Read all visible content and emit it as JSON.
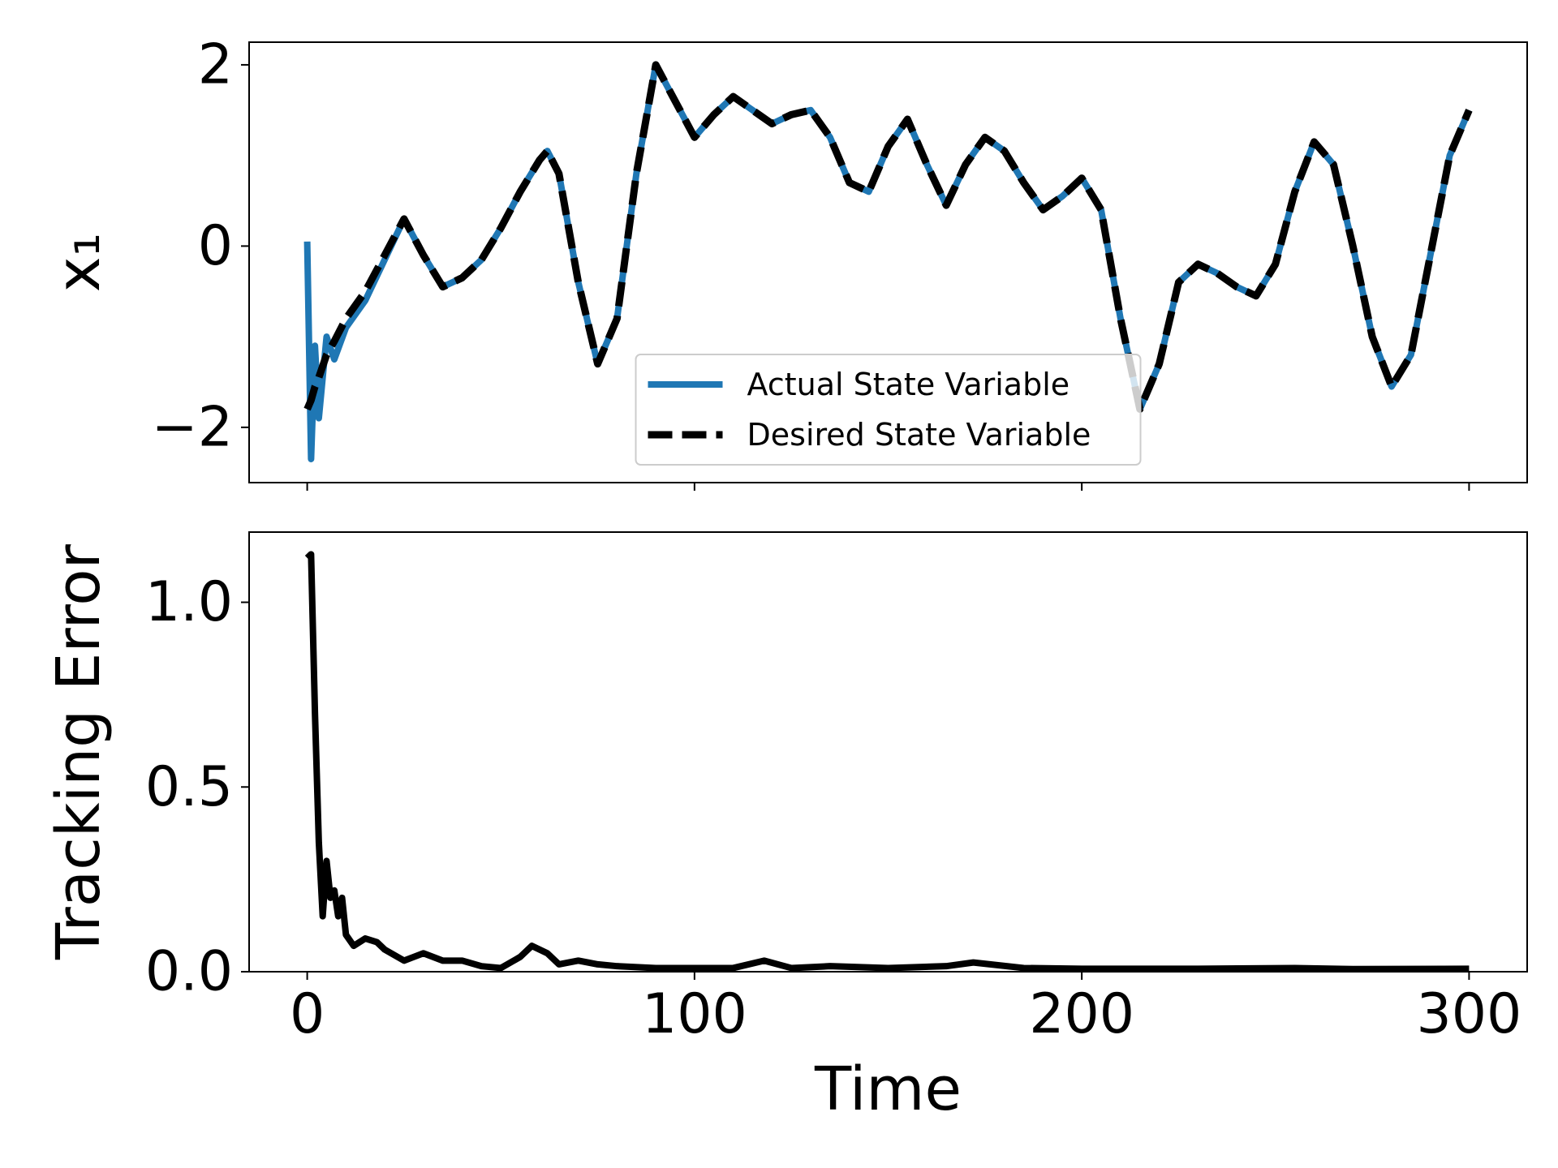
{
  "chart_data": [
    {
      "type": "line",
      "ylabel": "x₁",
      "x": [
        0,
        1,
        2,
        3,
        5,
        7,
        10,
        15,
        20,
        25,
        30,
        35,
        40,
        45,
        50,
        55,
        60,
        62,
        65,
        70,
        75,
        80,
        85,
        90,
        95,
        100,
        105,
        110,
        115,
        120,
        125,
        130,
        135,
        140,
        145,
        150,
        155,
        160,
        165,
        170,
        175,
        180,
        185,
        190,
        195,
        200,
        205,
        210,
        215,
        220,
        225,
        230,
        235,
        240,
        245,
        250,
        255,
        260,
        265,
        270,
        275,
        280,
        285,
        290,
        295,
        300
      ],
      "series": [
        {
          "name": "Actual State Variable",
          "color": "#1f77b4",
          "style": "solid",
          "values": [
            0.05,
            -2.35,
            -1.1,
            -1.9,
            -1.0,
            -1.25,
            -0.9,
            -0.6,
            -0.15,
            0.3,
            -0.1,
            -0.45,
            -0.35,
            -0.15,
            0.2,
            0.6,
            0.95,
            1.05,
            0.8,
            -0.4,
            -1.3,
            -0.8,
            0.8,
            2.0,
            1.6,
            1.2,
            1.45,
            1.65,
            1.5,
            1.35,
            1.45,
            1.5,
            1.2,
            0.7,
            0.6,
            1.1,
            1.4,
            0.9,
            0.45,
            0.9,
            1.2,
            1.05,
            0.7,
            0.4,
            0.55,
            0.75,
            0.4,
            -0.8,
            -1.8,
            -1.3,
            -0.4,
            -0.2,
            -0.3,
            -0.45,
            -0.55,
            -0.2,
            0.6,
            1.15,
            0.9,
            0.0,
            -1.0,
            -1.55,
            -1.2,
            -0.1,
            1.0,
            1.5
          ]
        },
        {
          "name": "Desired State Variable",
          "color": "#000000",
          "style": "dashed",
          "values": [
            -1.8,
            -1.7,
            -1.55,
            -1.45,
            -1.2,
            -1.05,
            -0.8,
            -0.5,
            -0.1,
            0.3,
            -0.1,
            -0.45,
            -0.35,
            -0.15,
            0.2,
            0.6,
            0.95,
            1.05,
            0.8,
            -0.4,
            -1.3,
            -0.8,
            0.8,
            2.0,
            1.6,
            1.2,
            1.45,
            1.65,
            1.5,
            1.35,
            1.45,
            1.5,
            1.2,
            0.7,
            0.6,
            1.1,
            1.4,
            0.9,
            0.45,
            0.9,
            1.2,
            1.05,
            0.7,
            0.4,
            0.55,
            0.75,
            0.4,
            -0.8,
            -1.8,
            -1.3,
            -0.4,
            -0.2,
            -0.3,
            -0.45,
            -0.55,
            -0.2,
            0.6,
            1.15,
            0.9,
            0.0,
            -1.0,
            -1.55,
            -1.2,
            -0.1,
            1.0,
            1.5
          ]
        }
      ],
      "xlim": [
        -15,
        315
      ],
      "ylim": [
        -2.61,
        2.25
      ],
      "xticks": [
        0,
        100,
        200,
        300
      ],
      "show_xtick_labels": false,
      "yticks": [
        {
          "value": -2,
          "label": "−2"
        },
        0,
        2
      ],
      "legend": "lower center"
    },
    {
      "type": "line",
      "ylabel": "Tracking Error",
      "xlabel": "Time",
      "x": [
        0,
        1,
        2,
        3,
        4,
        5,
        6,
        7,
        8,
        9,
        10,
        12,
        15,
        18,
        20,
        25,
        30,
        35,
        40,
        45,
        50,
        55,
        58,
        62,
        65,
        70,
        75,
        80,
        90,
        100,
        110,
        118,
        125,
        135,
        150,
        165,
        172,
        185,
        200,
        230,
        255,
        270,
        300
      ],
      "series": [
        {
          "color": "#000000",
          "style": "solid",
          "values": [
            1.12,
            1.13,
            0.7,
            0.35,
            0.15,
            0.3,
            0.2,
            0.22,
            0.15,
            0.2,
            0.1,
            0.07,
            0.09,
            0.08,
            0.06,
            0.03,
            0.05,
            0.03,
            0.03,
            0.015,
            0.01,
            0.04,
            0.07,
            0.05,
            0.02,
            0.03,
            0.02,
            0.015,
            0.01,
            0.01,
            0.01,
            0.03,
            0.01,
            0.015,
            0.01,
            0.015,
            0.025,
            0.01,
            0.008,
            0.008,
            0.01,
            0.007,
            0.008
          ]
        }
      ],
      "xlim": [
        -15,
        315
      ],
      "ylim": [
        0,
        1.19
      ],
      "xticks": [
        0,
        100,
        200,
        300
      ],
      "show_xtick_labels": true,
      "yticks": [
        {
          "value": 0,
          "label": "0.0"
        },
        {
          "value": 0.5,
          "label": "0.5"
        },
        {
          "value": 1.0,
          "label": "1.0"
        }
      ]
    }
  ]
}
